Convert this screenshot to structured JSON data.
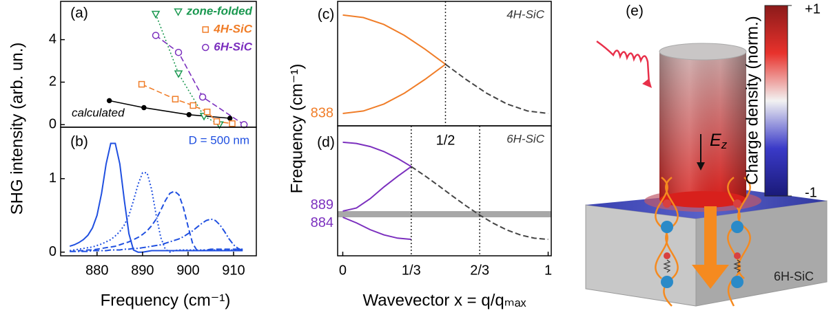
{
  "chart_data": [
    {
      "type": "scatter",
      "panel": "(a)",
      "ylabel": "SHG intensity (arb. un.)",
      "xlim": [
        872,
        915
      ],
      "ylim": [
        -0.12,
        5.8
      ],
      "yticks": [
        0,
        2,
        4
      ],
      "legend": "upper right",
      "series": [
        {
          "name": "calculated",
          "color": "#000000",
          "marker": "dot",
          "dash": "solid",
          "x": [
            882.7,
            890.3,
            900.2,
            909.2
          ],
          "values": [
            1.13,
            0.8,
            0.47,
            0.3
          ]
        },
        {
          "name": "zone-folded",
          "color": "#1a9850",
          "marker": "triangle",
          "dash": "dotted",
          "x": [
            892.9,
            897.9,
            903.5,
            906.9
          ],
          "values": [
            5.2,
            2.4,
            0.4,
            0.0
          ]
        },
        {
          "name": "4H-SiC",
          "color": "#f07d28",
          "marker": "square",
          "dash": "dashed",
          "x": [
            889.8,
            897.2,
            901.1,
            904.2,
            906.3,
            909.7
          ],
          "values": [
            1.9,
            1.2,
            0.9,
            0.6,
            0.15,
            0.05
          ]
        },
        {
          "name": "6H-SiC",
          "color": "#7b2fbe",
          "marker": "circle",
          "dash": "dashed",
          "x": [
            892.9,
            897.9,
            903.2,
            912.3
          ],
          "values": [
            4.2,
            3.4,
            1.3,
            0.0
          ]
        }
      ]
    },
    {
      "type": "line",
      "panel": "(b)",
      "annotation": "D = 500 nm",
      "annotation_color": "#1f4fe0",
      "xlabel": "Frequency (cm⁻¹)",
      "xlim": [
        872,
        915
      ],
      "ylim": [
        -0.05,
        1.7
      ],
      "xticks": [
        880,
        890,
        900,
        910
      ],
      "yticks": [
        0,
        1
      ],
      "x": [
        874,
        875,
        876,
        877,
        878,
        879,
        880,
        881,
        882,
        883,
        884,
        885,
        886,
        887,
        888,
        889,
        890,
        891,
        892,
        893,
        894,
        895,
        896,
        897,
        898,
        899,
        900,
        901,
        902,
        903,
        904,
        905,
        906,
        907,
        908,
        909,
        910,
        911,
        912
      ],
      "series": [
        {
          "color": "#1f4fe0",
          "dash": "solid",
          "values": [
            0.08,
            0.1,
            0.13,
            0.17,
            0.23,
            0.33,
            0.5,
            0.8,
            1.2,
            1.48,
            1.48,
            1.2,
            0.7,
            0.25,
            0.03,
            0,
            0,
            0.01,
            0.02,
            0.02,
            0.02,
            0.02,
            0.02,
            0.02,
            0.02,
            0.02,
            0.02,
            0.02,
            0.02,
            0.02,
            0.02,
            0.02,
            0.02,
            0.02,
            0.02,
            0.02,
            0.02,
            0.02,
            0.02
          ]
        },
        {
          "color": "#1f4fe0",
          "dash": "dotted",
          "values": [
            0.02,
            0.03,
            0.04,
            0.05,
            0.06,
            0.07,
            0.09,
            0.11,
            0.14,
            0.17,
            0.22,
            0.28,
            0.37,
            0.5,
            0.7,
            0.92,
            1.08,
            1.08,
            0.85,
            0.5,
            0.2,
            0.04,
            0.0,
            0.02,
            0.03,
            0.03,
            0.03,
            0.03,
            0.03,
            0.03,
            0.03,
            0.03,
            0.03,
            0.03,
            0.03,
            0.03,
            0.03,
            0.03,
            0.03
          ]
        },
        {
          "color": "#1f4fe0",
          "dash": "dashed",
          "values": [
            0.01,
            0.01,
            0.02,
            0.02,
            0.03,
            0.03,
            0.04,
            0.05,
            0.06,
            0.07,
            0.08,
            0.1,
            0.12,
            0.14,
            0.17,
            0.2,
            0.24,
            0.29,
            0.36,
            0.45,
            0.57,
            0.7,
            0.8,
            0.83,
            0.78,
            0.6,
            0.35,
            0.12,
            0.02,
            0.02,
            0.03,
            0.04,
            0.04,
            0.04,
            0.04,
            0.04,
            0.04,
            0.04,
            0.04
          ]
        },
        {
          "color": "#1f4fe0",
          "dash": "dashdot",
          "values": [
            0.01,
            0.01,
            0.01,
            0.01,
            0.01,
            0.02,
            0.02,
            0.02,
            0.02,
            0.03,
            0.03,
            0.03,
            0.04,
            0.04,
            0.05,
            0.05,
            0.06,
            0.07,
            0.08,
            0.09,
            0.1,
            0.12,
            0.14,
            0.16,
            0.18,
            0.21,
            0.25,
            0.29,
            0.34,
            0.39,
            0.43,
            0.45,
            0.43,
            0.37,
            0.28,
            0.18,
            0.1,
            0.05,
            0.02
          ]
        }
      ]
    },
    {
      "type": "line",
      "panel": "(c)",
      "annotation": "4H-SiC",
      "ylabel": "Frequency (cm⁻¹)",
      "xlim": [
        -0.025,
        1.015
      ],
      "ylim": [
        830.5,
        905.9
      ],
      "xticks": [
        {
          "value": 0.5,
          "label": "1/2"
        }
      ],
      "yticks": [
        838
      ],
      "ytick_color": "#f07d28",
      "x": [
        0,
        0.1,
        0.2,
        0.3,
        0.4,
        0.5,
        0.6,
        0.7,
        0.8,
        0.9,
        1
      ],
      "series": [
        {
          "color": "#f07d28",
          "dash": "solid",
          "values": [
            897.6,
            896.1,
            891.9,
            885.3,
            877.0,
            867.8,
            null,
            null,
            null,
            null,
            null
          ]
        },
        {
          "color": "#f07d28",
          "dash": "solid",
          "values": [
            838,
            839.5,
            843.7,
            850.3,
            858.6,
            867.8,
            null,
            null,
            null,
            null,
            null
          ]
        },
        {
          "color": "#444444",
          "dash": "dashed",
          "values": [
            null,
            null,
            null,
            null,
            null,
            867.8,
            858.6,
            850.3,
            843.7,
            839.5,
            838
          ]
        }
      ]
    },
    {
      "type": "line",
      "panel": "(d)",
      "annotation": "6H-SiC",
      "xlabel": "Wavevector x = q/qₘₐₓ",
      "xlim": [
        -0.025,
        1.015
      ],
      "ylim": [
        852.9,
        957.9
      ],
      "xticks": [
        0,
        {
          "value": 0.3333,
          "label": "1/3"
        },
        {
          "value": 0.6667,
          "label": "2/3"
        },
        1
      ],
      "yticks": [
        889,
        884
      ],
      "ytick_color": "#7b2fbe",
      "hband": [
        884,
        889
      ],
      "band_color": "#a8a8a8",
      "x": [
        0,
        0.0667,
        0.1333,
        0.2,
        0.2667,
        0.3333,
        0.4,
        0.4667,
        0.5333,
        0.6,
        0.6667,
        0.7333,
        0.8,
        0.8667,
        0.9333,
        1
      ],
      "series": [
        {
          "color": "#7b2fbe",
          "dash": "solid",
          "values": [
            944.6,
            943.7,
            941.2,
            937.1,
            931.6,
            925.0,
            null,
            null,
            null,
            null,
            null,
            null,
            null,
            null,
            null,
            null
          ]
        },
        {
          "color": "#7b2fbe",
          "dash": "solid",
          "values": [
            889.0,
            891.5,
            899.0,
            908.5,
            917.0,
            925.0,
            null,
            null,
            null,
            null,
            null,
            null,
            null,
            null,
            null,
            null
          ]
        },
        {
          "color": "#7b2fbe",
          "dash": "solid",
          "values": [
            884.0,
            879.5,
            874.0,
            869.8,
            867.2,
            866.2,
            null,
            null,
            null,
            null,
            null,
            null,
            null,
            null,
            null,
            null
          ]
        },
        {
          "color": "#444444",
          "dash": "dashed",
          "values": [
            null,
            null,
            null,
            null,
            null,
            925.0,
            917.5,
            909.5,
            901.3,
            893.3,
            885.8,
            879.2,
            873.7,
            869.6,
            867.1,
            866.2
          ]
        }
      ]
    }
  ],
  "diagram": {
    "panel": "(e)",
    "field_label": {
      "symbol": "E",
      "subscript": "z"
    },
    "substrate_label": "6H-SiC",
    "colorbar": {
      "label": "Charge density (norm.)",
      "lim": [
        -1,
        1
      ],
      "ticks": [
        {
          "value": 1,
          "label": "+1"
        },
        -1
      ]
    }
  }
}
